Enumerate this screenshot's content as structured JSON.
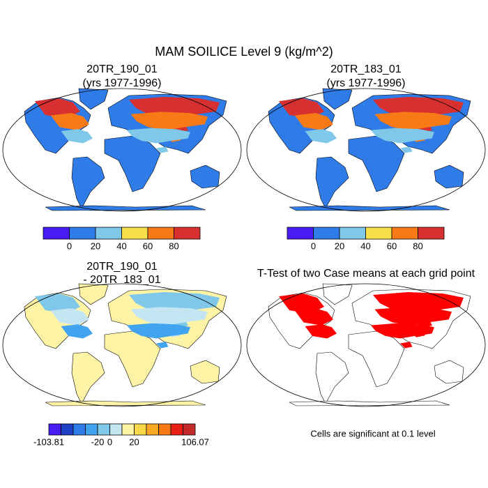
{
  "title": "MAM SOILICE Level 9 (kg/m^2)",
  "panels": [
    {
      "title": [
        "20TR_190_01",
        "(yrs 1977-1996)"
      ],
      "colorbar": {
        "colors": [
          "#4a1cf5",
          "#2f7be8",
          "#80c8ea",
          "#f8df4c",
          "#f77a17",
          "#d63030"
        ],
        "labels": [
          "0",
          "20",
          "40",
          "60",
          "80"
        ]
      }
    },
    {
      "title": [
        "20TR_183_01",
        "(yrs 1977-1996)"
      ],
      "colorbar": {
        "colors": [
          "#4a1cf5",
          "#2f7be8",
          "#80c8ea",
          "#f8df4c",
          "#f77a17",
          "#d63030"
        ],
        "labels": [
          "0",
          "20",
          "40",
          "60",
          "80"
        ]
      }
    },
    {
      "title": [
        "20TR_190_01",
        "- 20TR_183_01"
      ],
      "colorbar": {
        "colors": [
          "#4a1cf5",
          "#2040c8",
          "#2f7be8",
          "#40a4f0",
          "#80c8ea",
          "#c4e6f2",
          "#fff4a6",
          "#f8d84a",
          "#f7a824",
          "#f77a17",
          "#e82018",
          "#c42a2a"
        ],
        "labels": [
          "-103.81",
          "-20",
          "0",
          "20",
          "106.07"
        ]
      }
    },
    {
      "title": [
        "T-Test of two Case means at each grid point"
      ],
      "note": "Cells are significant at 0.1 level"
    }
  ]
}
